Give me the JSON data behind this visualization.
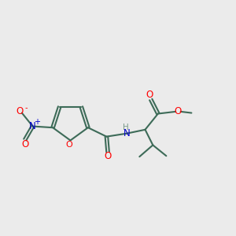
{
  "background_color": "#ebebeb",
  "bond_color": "#3d6b58",
  "atom_colors": {
    "O": "#ff0000",
    "N": "#0000cc",
    "H": "#7a9a8a",
    "C": "#3d6b58"
  },
  "figsize": [
    3.0,
    3.0
  ],
  "dpi": 100
}
